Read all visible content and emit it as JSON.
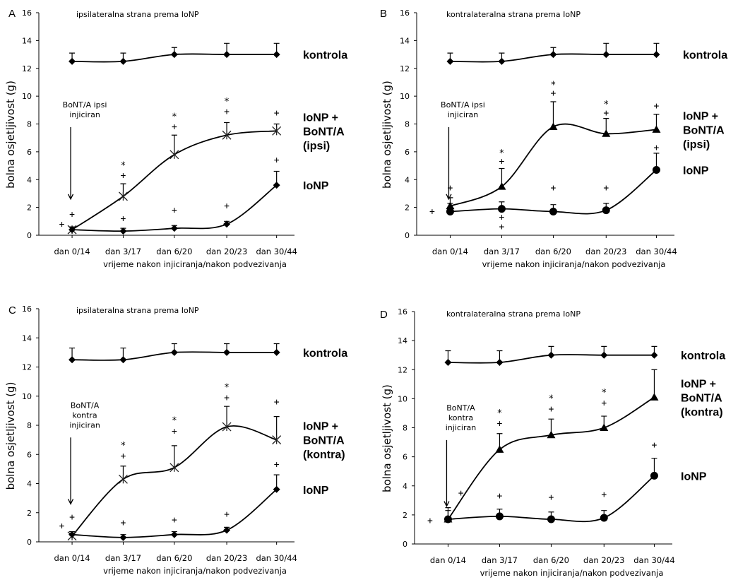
{
  "chart_data": [
    {
      "type": "line",
      "panel_letter": "A",
      "title": "ipsilateralna strana prema IoNP",
      "xlabel": "vrijeme nakon injiciranja/nakon podvezivanja",
      "ylabel": "bolna osjetljivost (g)",
      "categories": [
        "dan 0/14",
        "dan 3/17",
        "dan 6/20",
        "dan 20/23",
        "dan 30/44"
      ],
      "ylim": [
        0,
        16
      ],
      "yticks": [
        "0",
        "2",
        "4",
        "6",
        "8",
        "10",
        "12",
        "14",
        "16"
      ],
      "series": [
        {
          "name": "kontrola",
          "label_lines": [
            "kontrola"
          ],
          "values": [
            12.5,
            12.5,
            13.0,
            13.0,
            13.0
          ],
          "errors": [
            0.6,
            0.6,
            0.5,
            0.8,
            0.8
          ],
          "marker": "diamond"
        },
        {
          "name": "IoNP + BoNT/A (ipsi)",
          "label_lines": [
            "IoNP +",
            "BoNT/A",
            "(ipsi)"
          ],
          "values": [
            0.4,
            2.8,
            5.8,
            7.2,
            7.5
          ],
          "errors": [
            0.2,
            0.9,
            1.4,
            0.9,
            0.5
          ],
          "marker": "star"
        },
        {
          "name": "IoNP",
          "label_lines": [
            "IoNP"
          ],
          "values": [
            0.4,
            0.3,
            0.5,
            0.8,
            3.6
          ],
          "errors": [
            0.2,
            0.2,
            0.2,
            0.2,
            1.0
          ],
          "marker": "diamond"
        }
      ],
      "annotation": {
        "lines": [
          "BoNT/A ipsi",
          "injiciran"
        ],
        "arrow_at": "dan 0/14"
      },
      "significance_marks": [
        {
          "text": "+",
          "x": "dan 0/14",
          "y": 1.5
        },
        {
          "text": "+",
          "x": "dan 0/14",
          "y": 0.8,
          "dx": -0.2
        },
        {
          "text": "*",
          "x": "dan 3/17",
          "y": 5.2
        },
        {
          "text": "+",
          "x": "dan 3/17",
          "y": 4.3
        },
        {
          "text": "+",
          "x": "dan 3/17",
          "y": 1.2
        },
        {
          "text": "*",
          "x": "dan 6/20",
          "y": 8.7
        },
        {
          "text": "+",
          "x": "dan 6/20",
          "y": 7.8
        },
        {
          "text": "+",
          "x": "dan 6/20",
          "y": 1.8
        },
        {
          "text": "*",
          "x": "dan 20/23",
          "y": 9.8
        },
        {
          "text": "+",
          "x": "dan 20/23",
          "y": 8.9
        },
        {
          "text": "+",
          "x": "dan 20/23",
          "y": 2.1
        },
        {
          "text": "+",
          "x": "dan 30/44",
          "y": 8.8
        },
        {
          "text": "+",
          "x": "dan 30/44",
          "y": 5.4
        }
      ]
    },
    {
      "type": "line",
      "panel_letter": "B",
      "title": "kontralateralna strana prema IoNP",
      "xlabel": "vrijeme nakon injiciranja/nakon podvezivanja",
      "ylabel": "bolna osjetljivost (g)",
      "categories": [
        "dan 0/14",
        "dan 3/17",
        "dan 6/20",
        "dan 20/23",
        "dan 30/44"
      ],
      "ylim": [
        0,
        16
      ],
      "yticks": [
        "0",
        "2",
        "4",
        "6",
        "8",
        "10",
        "12",
        "14",
        "16"
      ],
      "series": [
        {
          "name": "kontrola",
          "label_lines": [
            "kontrola"
          ],
          "values": [
            12.5,
            12.5,
            13.0,
            13.0,
            13.0
          ],
          "errors": [
            0.6,
            0.6,
            0.5,
            0.8,
            0.8
          ],
          "marker": "diamond"
        },
        {
          "name": "IoNP + BoNT/A (ipsi)",
          "label_lines": [
            "IoNP +",
            "BoNT/A",
            "(ipsi)"
          ],
          "values": [
            2.1,
            3.5,
            7.8,
            7.3,
            7.6
          ],
          "errors": [
            0.6,
            1.3,
            1.8,
            1.1,
            1.1
          ],
          "marker": "triangle"
        },
        {
          "name": "IoNP",
          "label_lines": [
            "IoNP"
          ],
          "values": [
            1.7,
            1.9,
            1.7,
            1.8,
            4.7
          ],
          "errors": [
            0.6,
            0.5,
            0.5,
            0.5,
            1.2
          ],
          "marker": "circle"
        }
      ],
      "annotation": {
        "lines": [
          "BoNT/A ipsi",
          "injiciran"
        ],
        "arrow_at": "dan 0/14"
      },
      "significance_marks": [
        {
          "text": "+",
          "x": "dan 0/14",
          "y": 3.4
        },
        {
          "text": "+",
          "x": "dan 0/14",
          "y": 1.7,
          "dx": -0.35
        },
        {
          "text": "*",
          "x": "dan 3/17",
          "y": 6.1
        },
        {
          "text": "+",
          "x": "dan 3/17",
          "y": 5.3
        },
        {
          "text": "+",
          "x": "dan 3/17",
          "y": 1.3
        },
        {
          "text": "+",
          "x": "dan 3/17",
          "y": 0.6
        },
        {
          "text": "*",
          "x": "dan 6/20",
          "y": 11.0
        },
        {
          "text": "+",
          "x": "dan 6/20",
          "y": 10.2
        },
        {
          "text": "+",
          "x": "dan 6/20",
          "y": 3.4
        },
        {
          "text": "*",
          "x": "dan 20/23",
          "y": 9.6
        },
        {
          "text": "+",
          "x": "dan 20/23",
          "y": 8.8
        },
        {
          "text": "+",
          "x": "dan 20/23",
          "y": 3.4
        },
        {
          "text": "+",
          "x": "dan 30/44",
          "y": 9.3
        },
        {
          "text": "+",
          "x": "dan 30/44",
          "y": 6.3
        }
      ]
    },
    {
      "type": "line",
      "panel_letter": "C",
      "title": "ipsilateralna strana prema IoNP",
      "xlabel": "vrijeme nakon injiciranja/nakon podvezivanja",
      "ylabel": "bolna osjetljivost (g)",
      "categories": [
        "dan 0/14",
        "dan 3/17",
        "dan 6/20",
        "dan 20/23",
        "dan 30/44"
      ],
      "ylim": [
        0,
        16
      ],
      "yticks": [
        "0",
        "2",
        "4",
        "6",
        "8",
        "10",
        "12",
        "14",
        "16"
      ],
      "series": [
        {
          "name": "kontrola",
          "label_lines": [
            "kontrola"
          ],
          "values": [
            12.5,
            12.5,
            13.0,
            13.0,
            13.0
          ],
          "errors": [
            0.8,
            0.8,
            0.6,
            0.6,
            0.6
          ],
          "marker": "diamond"
        },
        {
          "name": "IoNP + BoNT/A (kontra)",
          "label_lines": [
            "IoNP +",
            "BoNT/A",
            "(kontra)"
          ],
          "values": [
            0.4,
            4.3,
            5.1,
            7.9,
            7.0
          ],
          "errors": [
            0.2,
            0.9,
            1.5,
            1.4,
            1.6
          ],
          "marker": "star"
        },
        {
          "name": "IoNP",
          "label_lines": [
            "IoNP"
          ],
          "values": [
            0.5,
            0.3,
            0.5,
            0.8,
            3.6
          ],
          "errors": [
            0.2,
            0.2,
            0.2,
            0.2,
            1.0
          ],
          "marker": "diamond"
        }
      ],
      "annotation": {
        "lines": [
          "BoNT/A",
          "kontra",
          "injiciran"
        ],
        "arrow_at": "dan 0/14"
      },
      "significance_marks": [
        {
          "text": "+",
          "x": "dan 0/14",
          "y": 1.7
        },
        {
          "text": "+",
          "x": "dan 0/14",
          "y": 1.1,
          "dx": -0.2
        },
        {
          "text": "*",
          "x": "dan 3/17",
          "y": 6.8
        },
        {
          "text": "+",
          "x": "dan 3/17",
          "y": 5.9
        },
        {
          "text": "+",
          "x": "dan 3/17",
          "y": 1.3
        },
        {
          "text": "*",
          "x": "dan 6/20",
          "y": 8.5
        },
        {
          "text": "+",
          "x": "dan 6/20",
          "y": 7.6
        },
        {
          "text": "+",
          "x": "dan 6/20",
          "y": 1.5
        },
        {
          "text": "*",
          "x": "dan 20/23",
          "y": 10.8
        },
        {
          "text": "+",
          "x": "dan 20/23",
          "y": 9.9
        },
        {
          "text": "+",
          "x": "dan 20/23",
          "y": 1.9
        },
        {
          "text": "+",
          "x": "dan 30/44",
          "y": 9.6
        },
        {
          "text": "+",
          "x": "dan 30/44",
          "y": 5.3
        }
      ]
    },
    {
      "type": "line",
      "panel_letter": "D",
      "title": "kontralateralna strana prema IoNP",
      "xlabel": "vrijeme nakon injiciranja/nakon podvezivanja",
      "ylabel": "bolna osjetljivost (g)",
      "categories": [
        "dan 0/14",
        "dan 3/17",
        "dan 6/20",
        "dan 20/23",
        "dan 30/44"
      ],
      "ylim": [
        0,
        16
      ],
      "yticks": [
        "0",
        "2",
        "4",
        "6",
        "8",
        "10",
        "12",
        "14",
        "16"
      ],
      "series": [
        {
          "name": "kontrola",
          "label_lines": [
            "kontrola"
          ],
          "values": [
            12.5,
            12.5,
            13.0,
            13.0,
            13.0
          ],
          "errors": [
            0.8,
            0.8,
            0.6,
            0.6,
            0.6
          ],
          "marker": "diamond"
        },
        {
          "name": "IoNP + BoNT/A (kontra)",
          "label_lines": [
            "IoNP +",
            "BoNT/A",
            "(kontra)"
          ],
          "values": [
            1.7,
            6.5,
            7.5,
            8.0,
            10.1
          ],
          "errors": [
            0.8,
            1.1,
            1.1,
            0.8,
            1.9
          ],
          "marker": "triangle"
        },
        {
          "name": "IoNP",
          "label_lines": [
            "IoNP"
          ],
          "values": [
            1.7,
            1.9,
            1.7,
            1.8,
            4.7
          ],
          "errors": [
            0.6,
            0.5,
            0.5,
            0.5,
            1.2
          ],
          "marker": "circle"
        }
      ],
      "annotation": {
        "lines": [
          "BoNT/A",
          "kontra",
          "injiciran"
        ],
        "arrow_at": "dan 0/14"
      },
      "significance_marks": [
        {
          "text": "+",
          "x": "dan 0/14",
          "y": 3.5,
          "dx": 0.25
        },
        {
          "text": "+",
          "x": "dan 0/14",
          "y": 1.6,
          "dx": -0.35
        },
        {
          "text": "*",
          "x": "dan 3/17",
          "y": 9.2
        },
        {
          "text": "+",
          "x": "dan 3/17",
          "y": 8.3
        },
        {
          "text": "+",
          "x": "dan 3/17",
          "y": 3.3
        },
        {
          "text": "*",
          "x": "dan 6/20",
          "y": 10.2
        },
        {
          "text": "+",
          "x": "dan 6/20",
          "y": 9.3
        },
        {
          "text": "+",
          "x": "dan 6/20",
          "y": 3.2
        },
        {
          "text": "*",
          "x": "dan 20/23",
          "y": 10.6
        },
        {
          "text": "+",
          "x": "dan 20/23",
          "y": 9.7
        },
        {
          "text": "+",
          "x": "dan 20/23",
          "y": 3.4
        },
        {
          "text": "+",
          "x": "dan 30/44",
          "y": 6.8
        }
      ]
    }
  ]
}
